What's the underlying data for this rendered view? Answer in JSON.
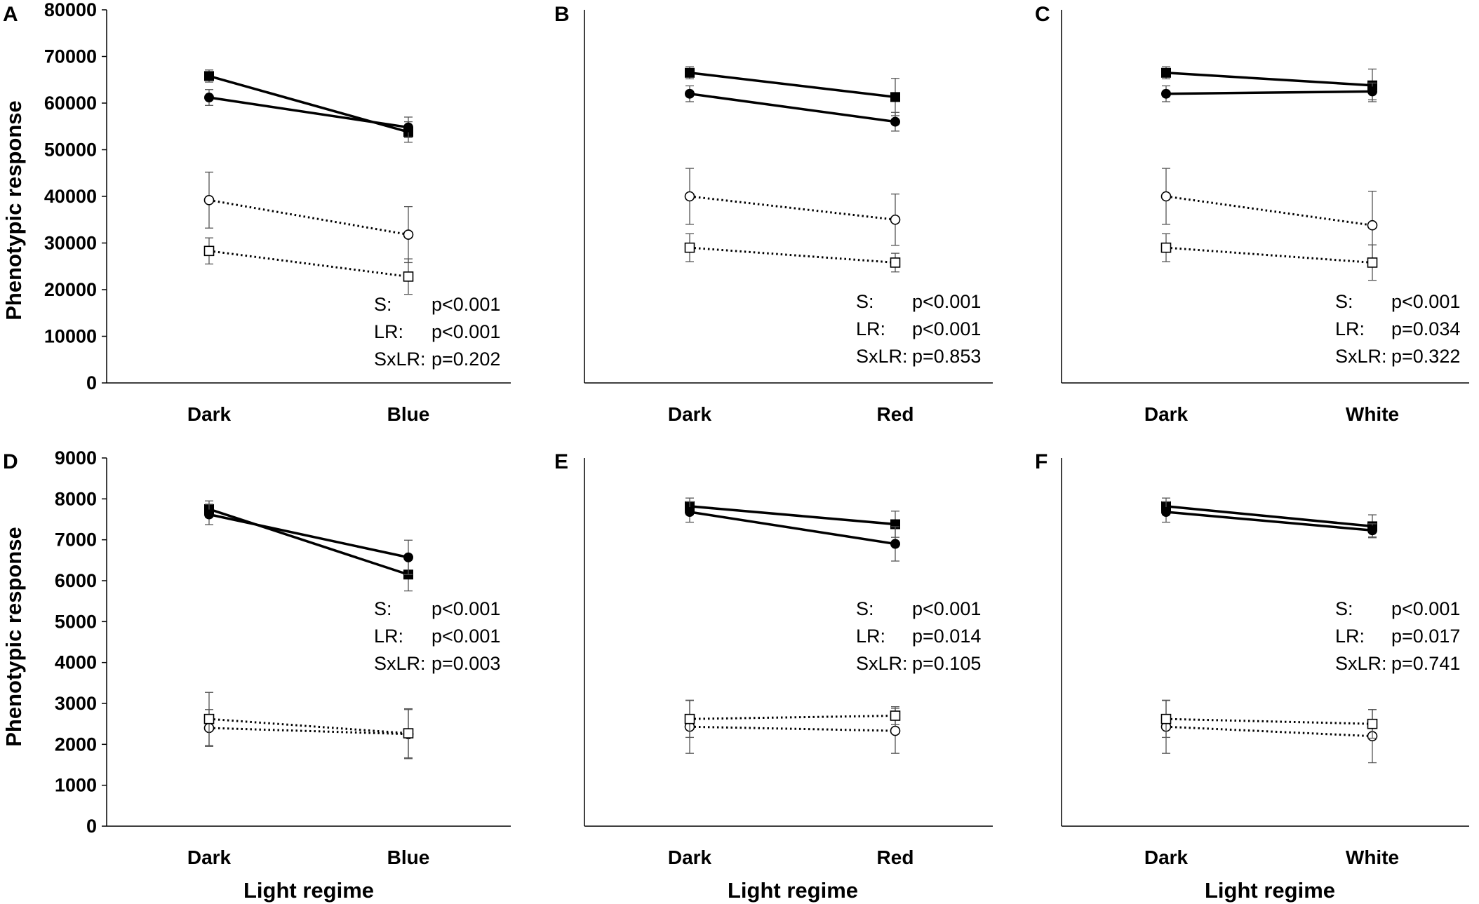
{
  "figure": {
    "y_axis_title": "Phenotypic response",
    "x_axis_title": "Light regime"
  },
  "chart_data": [
    {
      "type": "line",
      "panel": "A",
      "row": 0,
      "col": 0,
      "show_y_ticks": true,
      "categories": [
        "Dark",
        "Blue"
      ],
      "ylim": [
        0,
        80000
      ],
      "yticks": [
        0,
        10000,
        20000,
        30000,
        40000,
        50000,
        60000,
        70000,
        80000
      ],
      "series": [
        {
          "marker": "filled-square",
          "line": "solid",
          "values": [
            65800,
            53800
          ],
          "errors": [
            1300,
            2200
          ]
        },
        {
          "marker": "filled-circle",
          "line": "solid",
          "values": [
            61200,
            54800
          ],
          "errors": [
            1700,
            2200
          ]
        },
        {
          "marker": "open-circle",
          "line": "dotted",
          "values": [
            39200,
            31800
          ],
          "errors": [
            6000,
            6000
          ]
        },
        {
          "marker": "open-square",
          "line": "dotted",
          "values": [
            28300,
            22800
          ],
          "errors": [
            2800,
            3800
          ]
        }
      ],
      "stats": [
        {
          "label": "S:",
          "value": "p<0.001"
        },
        {
          "label": "LR:",
          "value": "p<0.001"
        },
        {
          "label": "SxLR:",
          "value": "p=0.202"
        }
      ]
    },
    {
      "type": "line",
      "panel": "B",
      "row": 0,
      "col": 1,
      "show_y_ticks": false,
      "categories": [
        "Dark",
        "Red"
      ],
      "ylim": [
        0,
        80000
      ],
      "series": [
        {
          "marker": "filled-square",
          "line": "solid",
          "values": [
            66500,
            61300
          ],
          "errors": [
            1300,
            4000
          ]
        },
        {
          "marker": "filled-circle",
          "line": "solid",
          "values": [
            62000,
            56000
          ],
          "errors": [
            1700,
            2000
          ]
        },
        {
          "marker": "open-circle",
          "line": "dotted",
          "values": [
            40000,
            35000
          ],
          "errors": [
            6000,
            5500
          ]
        },
        {
          "marker": "open-square",
          "line": "dotted",
          "values": [
            29000,
            25800
          ],
          "errors": [
            3000,
            2000
          ]
        }
      ],
      "stats": [
        {
          "label": "S:",
          "value": "p<0.001"
        },
        {
          "label": "LR:",
          "value": "p<0.001"
        },
        {
          "label": "SxLR:",
          "value": "p=0.853"
        }
      ]
    },
    {
      "type": "line",
      "panel": "C",
      "row": 0,
      "col": 2,
      "show_y_ticks": false,
      "categories": [
        "Dark",
        "White"
      ],
      "ylim": [
        0,
        80000
      ],
      "series": [
        {
          "marker": "filled-square",
          "line": "solid",
          "values": [
            66500,
            63800
          ],
          "errors": [
            1300,
            3500
          ]
        },
        {
          "marker": "filled-circle",
          "line": "solid",
          "values": [
            62000,
            62500
          ],
          "errors": [
            1700,
            1800
          ]
        },
        {
          "marker": "open-circle",
          "line": "dotted",
          "values": [
            40000,
            33800
          ],
          "errors": [
            6000,
            7300
          ]
        },
        {
          "marker": "open-square",
          "line": "dotted",
          "values": [
            29000,
            25800
          ],
          "errors": [
            3000,
            3800
          ]
        }
      ],
      "stats": [
        {
          "label": "S:",
          "value": "p<0.001"
        },
        {
          "label": "LR:",
          "value": "p=0.034"
        },
        {
          "label": "SxLR:",
          "value": "p=0.322"
        }
      ]
    },
    {
      "type": "line",
      "panel": "D",
      "row": 1,
      "col": 0,
      "show_y_ticks": true,
      "categories": [
        "Dark",
        "Blue"
      ],
      "ylim": [
        0,
        9000
      ],
      "yticks": [
        0,
        1000,
        2000,
        3000,
        4000,
        5000,
        6000,
        7000,
        8000,
        9000
      ],
      "series": [
        {
          "marker": "filled-square",
          "line": "solid",
          "values": [
            7750,
            6150
          ],
          "errors": [
            200,
            400
          ]
        },
        {
          "marker": "filled-circle",
          "line": "solid",
          "values": [
            7620,
            6570
          ],
          "errors": [
            250,
            420
          ]
        },
        {
          "marker": "open-circle",
          "line": "dotted",
          "values": [
            2400,
            2250
          ],
          "errors": [
            450,
            600
          ]
        },
        {
          "marker": "open-square",
          "line": "dotted",
          "values": [
            2620,
            2270
          ],
          "errors": [
            650,
            600
          ]
        }
      ],
      "stats": [
        {
          "label": "S:",
          "value": "p<0.001"
        },
        {
          "label": "LR:",
          "value": "p<0.001"
        },
        {
          "label": "SxLR:",
          "value": "p=0.003"
        }
      ]
    },
    {
      "type": "line",
      "panel": "E",
      "row": 1,
      "col": 1,
      "show_y_ticks": false,
      "categories": [
        "Dark",
        "Red"
      ],
      "ylim": [
        0,
        9000
      ],
      "series": [
        {
          "marker": "filled-square",
          "line": "solid",
          "values": [
            7820,
            7380
          ],
          "errors": [
            200,
            320
          ]
        },
        {
          "marker": "filled-circle",
          "line": "solid",
          "values": [
            7680,
            6900
          ],
          "errors": [
            250,
            420
          ]
        },
        {
          "marker": "open-circle",
          "line": "dotted",
          "values": [
            2430,
            2330
          ],
          "errors": [
            650,
            550
          ]
        },
        {
          "marker": "open-square",
          "line": "dotted",
          "values": [
            2620,
            2700
          ],
          "errors": [
            450,
            220
          ]
        }
      ],
      "stats": [
        {
          "label": "S:",
          "value": "p<0.001"
        },
        {
          "label": "LR:",
          "value": "p=0.014"
        },
        {
          "label": "SxLR:",
          "value": "p=0.105"
        }
      ]
    },
    {
      "type": "line",
      "panel": "F",
      "row": 1,
      "col": 2,
      "show_y_ticks": false,
      "categories": [
        "Dark",
        "White"
      ],
      "ylim": [
        0,
        9000
      ],
      "series": [
        {
          "marker": "filled-square",
          "line": "solid",
          "values": [
            7820,
            7330
          ],
          "errors": [
            200,
            280
          ]
        },
        {
          "marker": "filled-circle",
          "line": "solid",
          "values": [
            7680,
            7230
          ],
          "errors": [
            250,
            160
          ]
        },
        {
          "marker": "open-circle",
          "line": "dotted",
          "values": [
            2430,
            2200
          ],
          "errors": [
            650,
            650
          ]
        },
        {
          "marker": "open-square",
          "line": "dotted",
          "values": [
            2620,
            2500
          ],
          "errors": [
            450,
            350
          ]
        }
      ],
      "stats": [
        {
          "label": "S:",
          "value": "p<0.001"
        },
        {
          "label": "LR:",
          "value": "p=0.017"
        },
        {
          "label": "SxLR:",
          "value": "p=0.741"
        }
      ]
    }
  ]
}
